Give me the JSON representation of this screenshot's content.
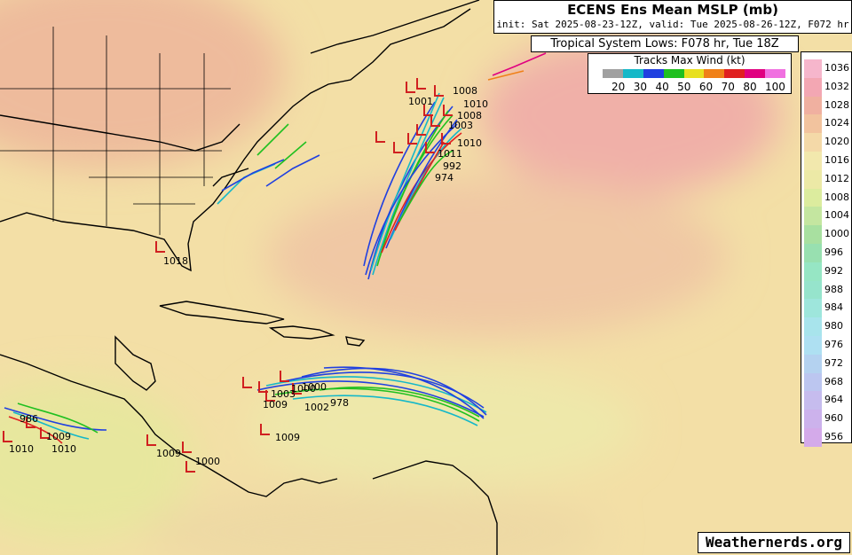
{
  "header": {
    "title": "ECENS Ens Mean MSLP (mb)",
    "subtitle": "init: Sat 2025-08-23-12Z, valid: Tue 2025-08-26-12Z, F072 hr"
  },
  "lows_box": {
    "text": "Tropical System Lows: F078 hr, Tue 18Z"
  },
  "tracks_legend": {
    "title": "Tracks Max Wind (kt)",
    "colors": [
      "#a0a0a0",
      "#15b8c8",
      "#2040e0",
      "#20c020",
      "#e8e020",
      "#f08018",
      "#e02020",
      "#e00080",
      "#f070e0"
    ],
    "ticks": [
      "20",
      "30",
      "40",
      "50",
      "60",
      "70",
      "80",
      "100"
    ]
  },
  "pressure_colorbar": {
    "labels": [
      "1036",
      "1032",
      "1028",
      "1024",
      "1020",
      "1016",
      "1012",
      "1008",
      "1004",
      "1000",
      "996",
      "992",
      "988",
      "984",
      "980",
      "976",
      "972",
      "968",
      "964",
      "960",
      "956"
    ],
    "colors": [
      "#f6b6cc",
      "#f3a7b3",
      "#f0b0a0",
      "#f2c39e",
      "#f4d9a8",
      "#f2e8ad",
      "#ece9a6",
      "#dcec9e",
      "#c4e6a0",
      "#a8e0a0",
      "#98e0b0",
      "#96e6c4",
      "#96e4cc",
      "#9ee6dc",
      "#a8e4ec",
      "#aee0f2",
      "#b4d2f0",
      "#bcc6f0",
      "#c6bcee",
      "#ccb2ec",
      "#d4aaea"
    ]
  },
  "low_labels": [
    "1008",
    "1010",
    "1008",
    "1003",
    "1010",
    "1001",
    "1011",
    "992",
    "974",
    "1018",
    "1003",
    "1002",
    "1000",
    "978",
    "1009",
    "1009",
    "1000",
    "986",
    "1009",
    "1010",
    "1010",
    "1009",
    "1000"
  ],
  "credit": "Weathernerds.org"
}
